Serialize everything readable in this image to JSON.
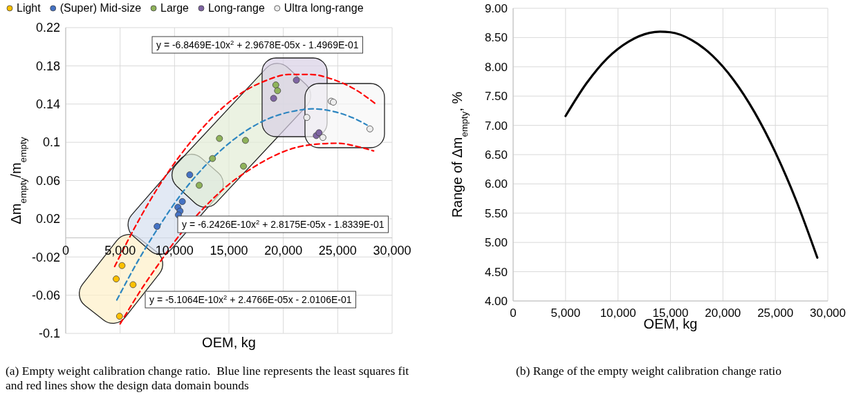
{
  "chart_data": [
    {
      "type": "scatter",
      "xlabel": "OEM, kg",
      "ylabel": "Δm$_{empty}$/m$_{empty}$",
      "xlim": [
        0,
        30000
      ],
      "ylim": [
        -0.1,
        0.22
      ],
      "xticks": [
        0,
        {
          "value": 5000,
          "label": "5,000"
        },
        {
          "value": 10000,
          "label": "10,000"
        },
        {
          "value": 15000,
          "label": "15,000"
        },
        {
          "value": 20000,
          "label": "20,000"
        },
        {
          "value": 25000,
          "label": "25,000"
        },
        {
          "value": 30000,
          "label": "30,000"
        }
      ],
      "yticks": [
        -0.1,
        -0.06,
        -0.02,
        0.02,
        0.06,
        0.1,
        0.14,
        0.18,
        0.22
      ],
      "grid": true,
      "legend": "top",
      "marker": "circle",
      "series": [
        {
          "name": "Light",
          "color": "#ffc000",
          "x": [
            5175,
            4640,
            6190,
            4946
          ],
          "values": [
            -0.029,
            -0.043,
            -0.049,
            -0.082
          ]
        },
        {
          "name": "(Super) Mid-size",
          "color": "#4472c4",
          "x": [
            8400,
            10310,
            10510,
            10360,
            10720,
            11400
          ],
          "values": [
            0.012,
            0.032,
            0.028,
            0.024,
            0.038,
            0.066
          ]
        },
        {
          "name": "Large",
          "color": "#8fb35a",
          "x": [
            12270,
            13490,
            14130,
            16520,
            16340,
            19310,
            19470
          ],
          "values": [
            0.055,
            0.083,
            0.104,
            0.102,
            0.075,
            0.16,
            0.154
          ]
        },
        {
          "name": "Long-range",
          "color": "#7f65a3",
          "x": [
            19110,
            21200,
            23030,
            23280
          ],
          "values": [
            0.146,
            0.165,
            0.107,
            0.11
          ]
        },
        {
          "name": "Ultra long-range",
          "color": "#ededed",
          "x": [
            22160,
            24400,
            24600,
            23640,
            27960
          ],
          "values": [
            0.126,
            0.143,
            0.142,
            0.105,
            0.114
          ]
        },
        {
          "type": "line",
          "color": "#ff0000",
          "line_style": "dashed",
          "marker": "none",
          "x": [
            4500,
            6500,
            8500,
            10500,
            12500,
            14500,
            16500,
            18500,
            20500,
            22500,
            24500,
            26500,
            28500
          ],
          "values": [
            -0.03,
            0.014,
            0.053,
            0.086,
            0.114,
            0.137,
            0.154,
            0.165,
            0.171,
            0.171,
            0.166,
            0.156,
            0.14
          ]
        },
        {
          "type": "line",
          "color": "#2e86c1",
          "line_style": "dashed",
          "marker": "none",
          "x": [
            4700,
            6700,
            8700,
            10700,
            12700,
            14700,
            16700,
            18700,
            20700,
            22700,
            24700,
            26700,
            27700
          ],
          "values": [
            -0.065,
            -0.023,
            0.014,
            0.047,
            0.074,
            0.096,
            0.113,
            0.125,
            0.132,
            0.135,
            0.132,
            0.124,
            0.118
          ]
        },
        {
          "type": "line",
          "color": "#ff0000",
          "line_style": "dashed",
          "marker": "none",
          "x": [
            5000,
            7000,
            9000,
            10000,
            12500,
            15000,
            17000,
            19000,
            21000,
            23000,
            25000,
            27000,
            28300
          ],
          "values": [
            -0.09,
            -0.053,
            -0.02,
            -0.004,
            0.029,
            0.056,
            0.072,
            0.085,
            0.094,
            0.098,
            0.099,
            0.095,
            0.091
          ]
        }
      ],
      "annotations": [
        "y = -6.8469E-10x$^{2}$ + 2.9678E-05x - 1.4969E-01",
        "y = -6.2426E-10x$^{2}$ + 2.8175E-05x - 1.8339E-01",
        "y = -5.1064E-10x$^{2}$ + 2.4766E-05x - 2.0106E-01",
        "(a) Empty weight calibration change ratio.  Blue line represents the least squares fit and red lines show the design data domain bounds"
      ]
    },
    {
      "type": "line",
      "xlabel": "OEM, kg",
      "ylabel": "Range of Δm$_{empty}$, %",
      "xlim": [
        0,
        30000
      ],
      "ylim": [
        4,
        9
      ],
      "xticks": [
        0,
        {
          "value": 5000,
          "label": "5,000"
        },
        {
          "value": 10000,
          "label": "10,000"
        },
        {
          "value": 15000,
          "label": "15,000"
        },
        {
          "value": 20000,
          "label": "20,000"
        },
        {
          "value": 25000,
          "label": "25,000"
        },
        {
          "value": 30000,
          "label": "30,000"
        }
      ],
      "yticks": [
        {
          "value": 4,
          "label": "4.00"
        },
        {
          "value": 4.5,
          "label": "4.50"
        },
        {
          "value": 5,
          "label": "5.00"
        },
        {
          "value": 5.5,
          "label": "5.50"
        },
        {
          "value": 6,
          "label": "6.00"
        },
        {
          "value": 6.5,
          "label": "6.50"
        },
        {
          "value": 7,
          "label": "7.00"
        },
        {
          "value": 7.5,
          "label": "7.50"
        },
        {
          "value": 8,
          "label": "8.00"
        },
        {
          "value": 8.5,
          "label": "8.50"
        },
        {
          "value": 9,
          "label": "9.00"
        }
      ],
      "grid": true,
      "marker": "none",
      "line_style": "solid",
      "series": [
        {
          "color": "#000000",
          "x": [
            5000,
            7000,
            9000,
            11000,
            13000,
            14000,
            15000,
            17000,
            19000,
            21000,
            23000,
            25000,
            27000,
            29000
          ],
          "values": [
            7.16,
            7.72,
            8.15,
            8.43,
            8.58,
            8.6,
            8.59,
            8.46,
            8.19,
            7.78,
            7.23,
            6.54,
            5.71,
            4.74
          ]
        }
      ],
      "annotations": [
        "(b) Range of the empty weight calibration change ratio"
      ]
    }
  ]
}
